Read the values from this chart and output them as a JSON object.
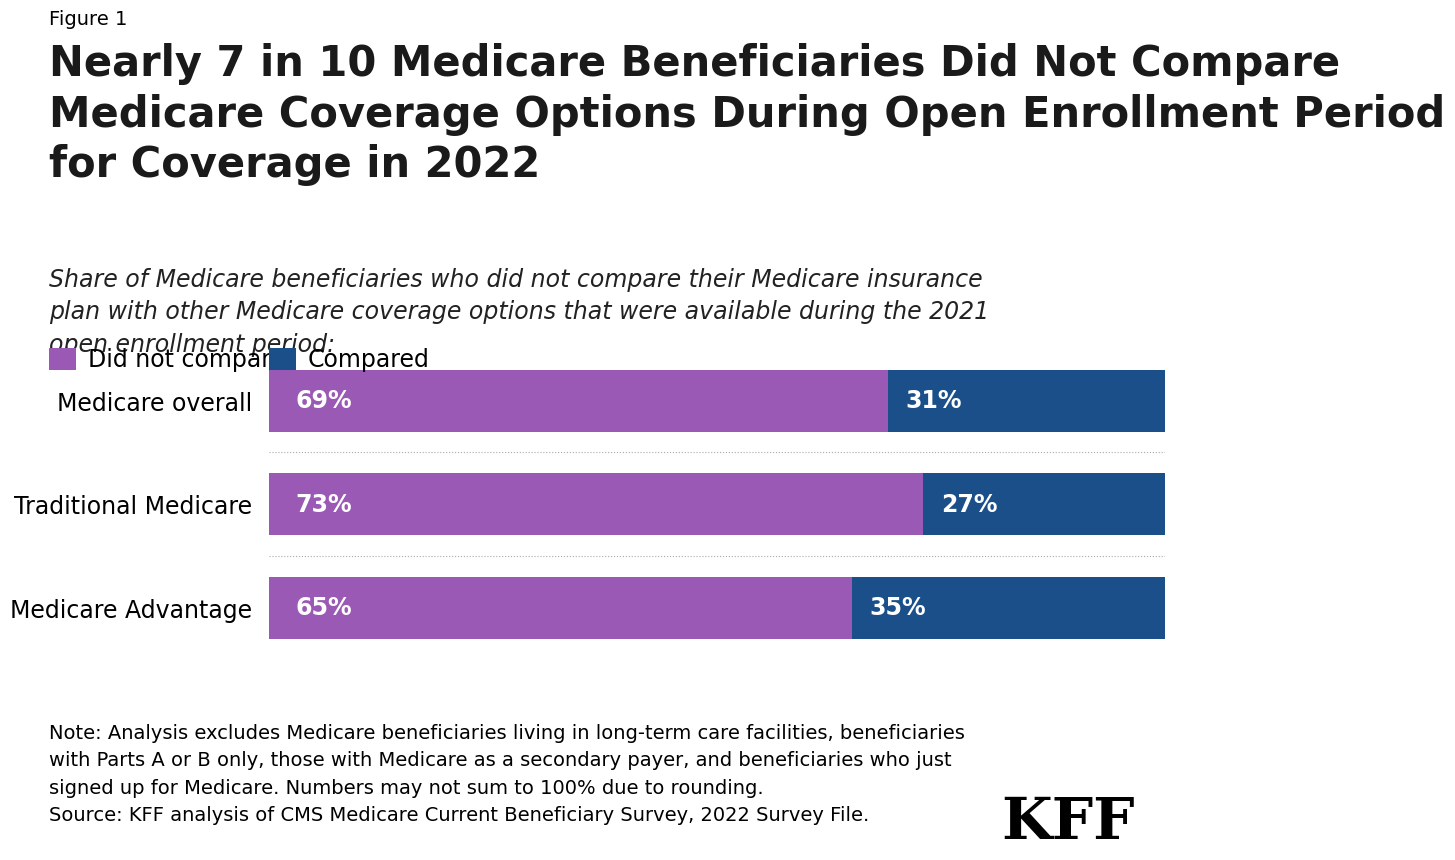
{
  "figure_label": "Figure 1",
  "title": "Nearly 7 in 10 Medicare Beneficiaries Did Not Compare\nMedicare Coverage Options During Open Enrollment Period\nfor Coverage in 2022",
  "subtitle": "Share of Medicare beneficiaries who did not compare their Medicare insurance\nplan with other Medicare coverage options that were available during the 2021\nopen enrollment period:",
  "categories": [
    "Medicare overall",
    "Traditional Medicare",
    "Medicare Advantage"
  ],
  "did_not_compare": [
    69,
    73,
    65
  ],
  "compared": [
    31,
    27,
    35
  ],
  "color_did_not_compare": "#9B59B6",
  "color_compared": "#1B4F8A",
  "legend_label_1": "Did not compare",
  "legend_label_2": "Compared",
  "note_line1": "Note: Analysis excludes Medicare beneficiaries living in long-term care facilities, beneficiaries",
  "note_line2": "with Parts A or B only, those with Medicare as a secondary payer, and beneficiaries who just",
  "note_line3": "signed up for Medicare. Numbers may not sum to 100% due to rounding.",
  "note_line4": "Source: KFF analysis of CMS Medicare Current Beneficiary Survey, 2022 Survey File.",
  "kff_label": "KFF",
  "background_color": "#FFFFFF",
  "bar_height": 0.6,
  "title_fontsize": 30,
  "subtitle_fontsize": 17,
  "category_fontsize": 17,
  "bar_label_fontsize": 17,
  "legend_fontsize": 17,
  "note_fontsize": 14,
  "figure_label_fontsize": 14
}
